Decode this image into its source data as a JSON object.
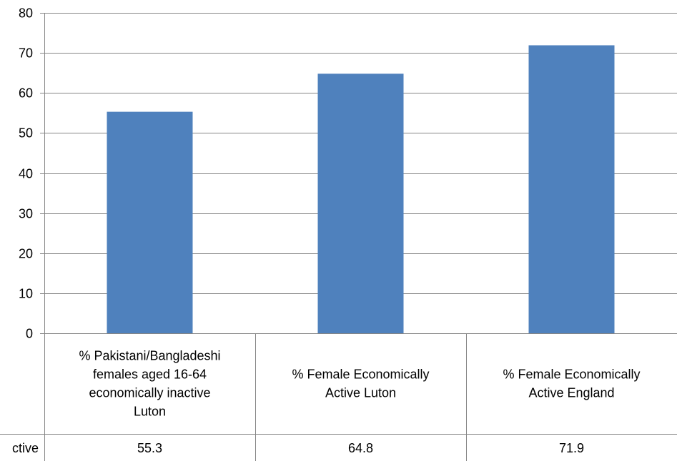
{
  "chart_data": {
    "type": "bar",
    "categories": [
      [
        "% Pakistani/Bangladeshi",
        "females aged 16-64",
        "economically inactive",
        "Luton"
      ],
      [
        "% Female Economically",
        "Active Luton"
      ],
      [
        "% Female Economically",
        "Active England"
      ]
    ],
    "series": [
      {
        "name": "ctive",
        "values": [
          55.3,
          64.8,
          71.9
        ]
      }
    ],
    "value_labels": [
      "55.3",
      "64.8",
      "71.9"
    ],
    "ylim": [
      0,
      80
    ],
    "yticks": [
      0,
      10,
      20,
      30,
      40,
      50,
      60,
      70,
      80
    ],
    "grid": true,
    "legend": "data-table",
    "colors": {
      "bar": "#4F81BD",
      "grid": "#868686",
      "axis": "#868686"
    }
  }
}
